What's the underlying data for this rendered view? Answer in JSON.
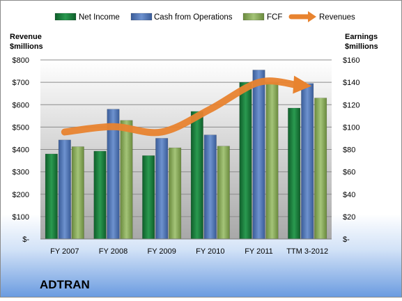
{
  "chart_data": {
    "type": "bar",
    "title": "ADTRAN",
    "categories": [
      "FY 2007",
      "FY 2008",
      "FY 2009",
      "FY 2010",
      "FY 2011",
      "TTM 3-2012"
    ],
    "series": [
      {
        "name": "Net Income",
        "axis": "right",
        "color": "#1f8c44",
        "values": [
          76,
          78.5,
          74.5,
          114,
          140,
          117
        ]
      },
      {
        "name": "Cash from Operations",
        "axis": "right",
        "color": "#5b80bf",
        "values": [
          88.5,
          116,
          90,
          93,
          151,
          139
        ]
      },
      {
        "name": "FCF",
        "axis": "right",
        "color": "#8fb15f",
        "values": [
          82.5,
          106,
          81.5,
          83,
          139.5,
          126
        ]
      }
    ],
    "line_series": {
      "name": "Revenues",
      "axis": "left",
      "color": "#e8832f",
      "values": [
        478,
        502,
        478,
        580,
        700,
        685
      ]
    },
    "left_axis": {
      "title": [
        "Revenue",
        "$millions"
      ],
      "range": [
        0,
        800
      ],
      "ticks": [
        "$-",
        "$100",
        "$200",
        "$300",
        "$400",
        "$500",
        "$600",
        "$700",
        "$800"
      ]
    },
    "right_axis": {
      "title": [
        "Earnings",
        "$millions"
      ],
      "range": [
        0,
        160
      ],
      "ticks": [
        "$-",
        "$20",
        "$40",
        "$60",
        "$80",
        "$100",
        "$120",
        "$140",
        "$160"
      ]
    },
    "legend": {
      "placement": "top",
      "items": [
        "Net Income",
        "Cash from Operations",
        "FCF",
        "Revenues"
      ]
    },
    "grid": true
  }
}
